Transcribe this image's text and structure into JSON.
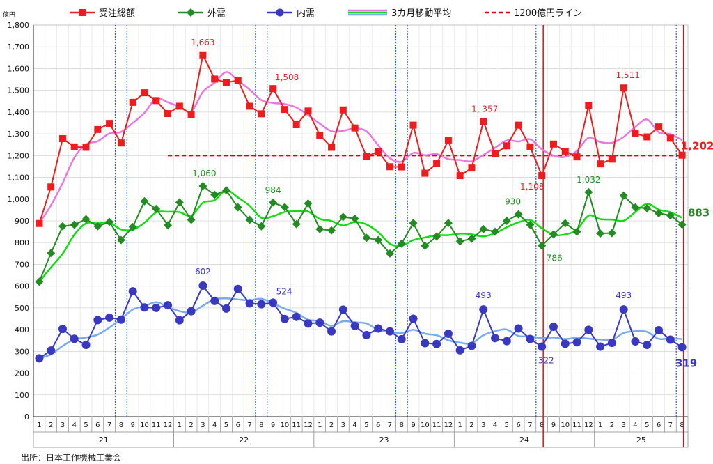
{
  "chart_data": {
    "type": "line",
    "y_unit": "億円",
    "ylim": [
      0,
      1800
    ],
    "y_ticks": [
      "0",
      "100",
      "200",
      "300",
      "400",
      "500",
      "600",
      "700",
      "800",
      "900",
      "1,000",
      "1,100",
      "1,200",
      "1,300",
      "1,400",
      "1,500",
      "1,600",
      "1,700",
      "1,800"
    ],
    "x_months": [
      "1",
      "2",
      "3",
      "4",
      "5",
      "6",
      "7",
      "8",
      "9",
      "10",
      "11",
      "12",
      "1",
      "2",
      "3",
      "4",
      "5",
      "6",
      "7",
      "8",
      "9",
      "10",
      "11",
      "12",
      "1",
      "2",
      "3",
      "4",
      "5",
      "6",
      "7",
      "8",
      "9",
      "10",
      "11",
      "12",
      "1",
      "2",
      "3",
      "4",
      "5",
      "6",
      "7",
      "8",
      "9",
      "10",
      "11",
      "12",
      "1",
      "2",
      "3",
      "4",
      "5",
      "6",
      "7",
      "8"
    ],
    "x_years": [
      {
        "label": "21",
        "start": 0,
        "end": 11
      },
      {
        "label": "22",
        "start": 12,
        "end": 23
      },
      {
        "label": "23",
        "start": 24,
        "end": 35
      },
      {
        "label": "24",
        "start": 36,
        "end": 47
      },
      {
        "label": "25",
        "start": 48,
        "end": 55
      }
    ],
    "series": [
      {
        "name": "受注総額",
        "color": "#ee1c1c",
        "marker": "square",
        "values": [
          888,
          1056,
          1278,
          1240,
          1238,
          1320,
          1348,
          1258,
          1445,
          1489,
          1453,
          1393,
          1427,
          1390,
          1663,
          1552,
          1536,
          1546,
          1427,
          1392,
          1508,
          1412,
          1342,
          1405,
          1294,
          1238,
          1410,
          1327,
          1195,
          1219,
          1149,
          1148,
          1340,
          1119,
          1163,
          1270,
          1108,
          1143,
          1357,
          1209,
          1245,
          1340,
          1240,
          1108,
          1253,
          1220,
          1194,
          1431,
          1162,
          1184,
          1511,
          1302,
          1286,
          1332,
          1280,
          1202
        ]
      },
      {
        "name": "外需",
        "color": "#228b22",
        "marker": "diamond",
        "values": [
          620,
          752,
          875,
          882,
          908,
          875,
          895,
          812,
          872,
          990,
          955,
          880,
          985,
          905,
          1060,
          1020,
          1040,
          962,
          905,
          875,
          984,
          963,
          885,
          980,
          862,
          856,
          918,
          910,
          822,
          812,
          750,
          795,
          890,
          785,
          828,
          890,
          806,
          818,
          862,
          850,
          900,
          930,
          882,
          786,
          838,
          889,
          850,
          1032,
          842,
          844,
          1016,
          962,
          958,
          935,
          925,
          883
        ]
      },
      {
        "name": "内需",
        "color": "#3838c0",
        "marker": "circle",
        "values": [
          268,
          304,
          403,
          358,
          330,
          444,
          455,
          446,
          576,
          502,
          500,
          512,
          443,
          485,
          602,
          532,
          497,
          587,
          521,
          517,
          524,
          449,
          459,
          428,
          432,
          392,
          492,
          417,
          375,
          405,
          392,
          356,
          450,
          338,
          334,
          381,
          305,
          325,
          493,
          361,
          347,
          405,
          357,
          322,
          413,
          335,
          342,
          399,
          322,
          339,
          493,
          346,
          330,
          397,
          354,
          319
        ]
      },
      {
        "name": "3カ月移動平均",
        "colors": [
          "#e878e0",
          "#11dd11",
          "#78aaee"
        ],
        "values_total": [
          null,
          null,
          1074,
          1191,
          1252,
          1266,
          1302,
          1309,
          1350,
          1397,
          1462,
          1445,
          1424,
          1403,
          1493,
          1535,
          1584,
          1545,
          1503,
          1455,
          1442,
          1437,
          1421,
          1386,
          1347,
          1312,
          1314,
          1325,
          1311,
          1247,
          1188,
          1172,
          1212,
          1202,
          1207,
          1184,
          1180,
          1174,
          1203,
          1236,
          1270,
          1265,
          1275,
          1229,
          1200,
          1194,
          1222,
          1282,
          1262,
          1259,
          1286,
          1332,
          1366,
          1307,
          1299,
          1271
        ]
      },
      {
        "name": "1200億円ライン",
        "color": "#e00000",
        "style": "dashed",
        "value": 1200
      }
    ],
    "data_labels": [
      {
        "series": 0,
        "index": 14,
        "text": "1,663"
      },
      {
        "series": 0,
        "index": 20,
        "text": "1,508"
      },
      {
        "series": 0,
        "index": 38,
        "text": "1, 357"
      },
      {
        "series": 0,
        "index": 43,
        "text": "1,108"
      },
      {
        "series": 0,
        "index": 50,
        "text": "1,511"
      },
      {
        "series": 0,
        "index": 55,
        "text": "1,202"
      },
      {
        "series": 1,
        "index": 14,
        "text": "1,060"
      },
      {
        "series": 1,
        "index": 20,
        "text": "984"
      },
      {
        "series": 1,
        "index": 41,
        "text": "930"
      },
      {
        "series": 1,
        "index": 43,
        "text": "786"
      },
      {
        "series": 1,
        "index": 47,
        "text": "1,032"
      },
      {
        "series": 1,
        "index": 55,
        "text": "883"
      },
      {
        "series": 2,
        "index": 14,
        "text": "602"
      },
      {
        "series": 2,
        "index": 20,
        "text": "524"
      },
      {
        "series": 2,
        "index": 38,
        "text": "493"
      },
      {
        "series": 2,
        "index": 43,
        "text": "322"
      },
      {
        "series": 2,
        "index": 50,
        "text": "493"
      },
      {
        "series": 2,
        "index": 55,
        "text": "319"
      }
    ],
    "blue_dotted_lines_between": [
      [
        6,
        7
      ],
      [
        7,
        8
      ],
      [
        18,
        19
      ],
      [
        19,
        20
      ],
      [
        30,
        31
      ],
      [
        31,
        32
      ],
      [
        42,
        43
      ],
      [
        54,
        55
      ]
    ],
    "red_solid_lines_at": [
      43,
      55
    ],
    "grid": true,
    "legend": "top"
  },
  "source_text": "出所：日本工作機械工業会",
  "red_line_start_index": 11
}
